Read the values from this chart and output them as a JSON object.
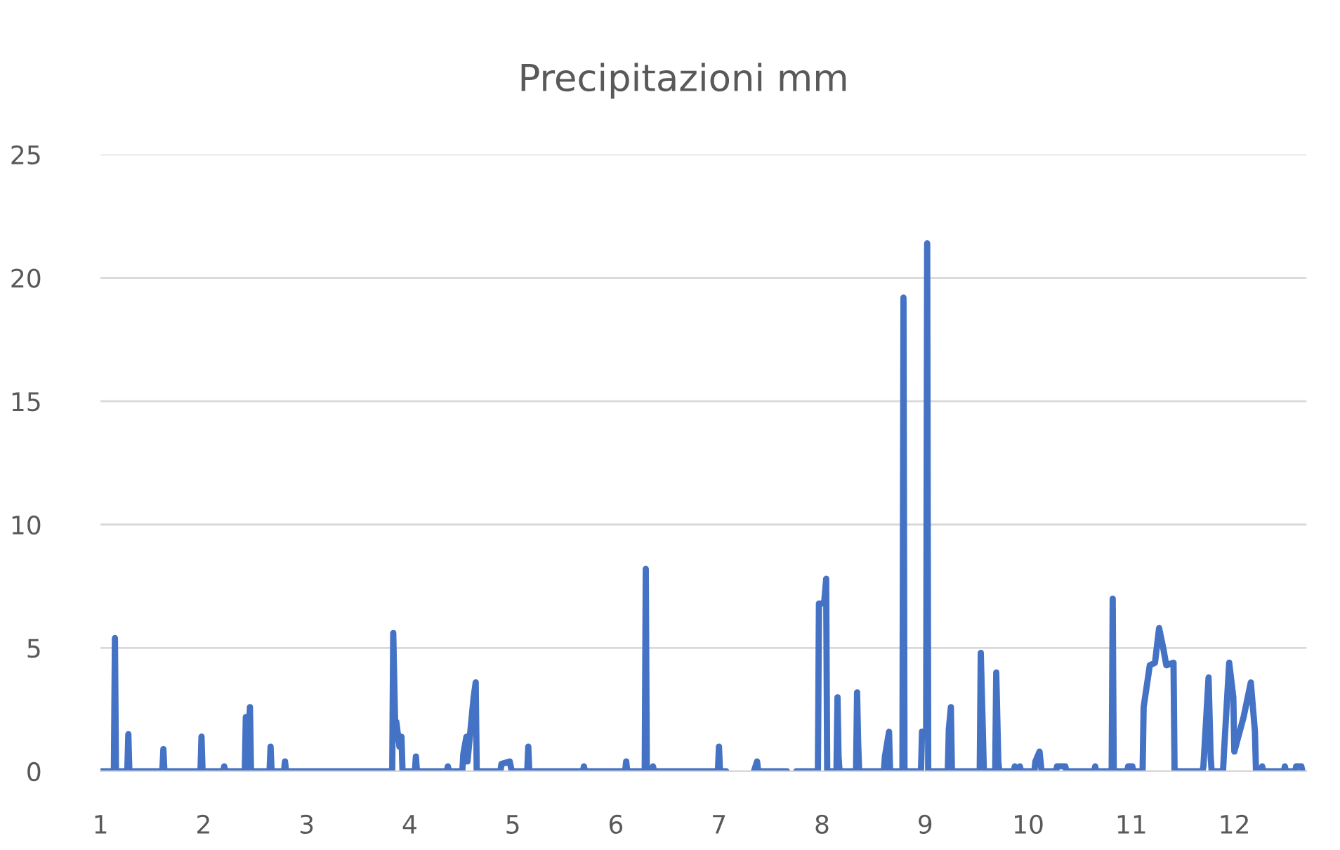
{
  "chart_data": {
    "type": "line",
    "title": "Precipitazioni mm",
    "x": [
      1,
      1.13,
      1.14,
      1.15,
      1.26,
      1.27,
      1.28,
      1.6,
      1.61,
      1.62,
      1.97,
      1.98,
      1.99,
      2.19,
      2.2,
      2.21,
      2.4,
      2.41,
      2.43,
      2.45,
      2.46,
      2.64,
      2.65,
      2.66,
      2.78,
      2.79,
      2.8,
      3.83,
      3.84,
      3.86,
      3.87,
      3.9,
      3.92,
      3.93,
      4.05,
      4.06,
      4.07,
      4.36,
      4.37,
      4.38,
      4.51,
      4.52,
      4.55,
      4.56,
      4.62,
      4.64,
      4.65,
      4.88,
      4.89,
      4.97,
      4.99,
      5.14,
      5.15,
      5.16,
      5.68,
      5.69,
      5.7,
      6.09,
      6.1,
      6.11,
      6.28,
      6.29,
      6.3,
      6.35,
      6.36,
      6.37,
      6.99,
      7.0,
      7.01,
      7.07,
      7.08,
      7.33,
      7.34,
      7.37,
      7.38,
      7.66,
      7.67,
      7.74,
      7.75,
      7.96,
      7.97,
      8.02,
      8.04,
      8.05,
      8.14,
      8.15,
      8.16,
      8.17,
      8.33,
      8.34,
      8.35,
      8.36,
      8.6,
      8.61,
      8.65,
      8.66,
      8.78,
      8.79,
      8.8,
      8.96,
      8.97,
      9.01,
      9.02,
      9.03,
      9.22,
      9.23,
      9.25,
      9.26,
      9.53,
      9.54,
      9.56,
      9.57,
      9.68,
      9.69,
      9.71,
      9.72,
      9.86,
      9.87,
      9.88,
      9.91,
      9.92,
      9.93,
      10.06,
      10.07,
      10.11,
      10.13,
      10.27,
      10.28,
      10.36,
      10.37,
      10.64,
      10.65,
      10.66,
      10.81,
      10.82,
      10.83,
      10.96,
      10.97,
      11.01,
      11.02,
      11.11,
      11.12,
      11.18,
      11.23,
      11.27,
      11.31,
      11.34,
      11.41,
      11.42,
      11.69,
      11.7,
      11.75,
      11.77,
      11.78,
      11.89,
      11.9,
      11.95,
      11.99,
      12.0,
      12.09,
      12.16,
      12.2,
      12.21,
      12.26,
      12.27,
      12.28,
      12.48,
      12.49,
      12.5,
      12.59,
      12.6,
      12.65,
      12.66
    ],
    "series": [
      {
        "color": "#4472c4",
        "values": [
          0,
          0,
          5.4,
          0,
          0,
          1.5,
          0,
          0,
          0.9,
          0,
          0,
          1.4,
          0,
          0,
          0.2,
          0,
          0,
          2.2,
          1.0,
          2.6,
          0,
          0,
          1.0,
          0,
          0,
          0.4,
          0,
          0,
          5.6,
          1.6,
          2.0,
          1.0,
          1.4,
          0,
          0,
          0.6,
          0,
          0,
          0.2,
          0,
          0,
          0.7,
          1.4,
          0.4,
          3.0,
          3.6,
          0,
          0,
          0.3,
          0.4,
          0,
          0,
          1.0,
          0,
          0,
          0.2,
          0,
          0,
          0.4,
          0,
          0,
          8.2,
          0,
          0,
          0.2,
          0,
          0,
          1.0,
          0,
          0,
          null,
          null,
          0,
          0.4,
          0,
          0,
          null,
          null,
          0,
          0,
          6.8,
          6.8,
          7.8,
          0,
          0,
          3.0,
          0.6,
          0,
          0,
          3.2,
          1.2,
          0,
          0,
          0.6,
          1.6,
          0,
          0,
          19.2,
          0,
          0,
          1.6,
          1.6,
          21.4,
          0,
          0,
          1.7,
          2.6,
          0,
          0,
          4.8,
          1.6,
          0,
          0,
          4.0,
          0.4,
          0,
          0,
          0.2,
          0,
          0,
          0.2,
          0,
          0,
          0.4,
          0.8,
          0,
          0,
          0.2,
          0.2,
          0,
          0,
          0.2,
          0,
          0,
          7.0,
          0,
          0,
          0.2,
          0.2,
          0,
          0,
          2.6,
          4.3,
          4.4,
          5.8,
          5.0,
          4.3,
          4.4,
          0,
          0,
          0.2,
          3.8,
          0.6,
          0,
          0,
          0.8,
          4.4,
          3.0,
          0.8,
          2.2,
          3.6,
          1.6,
          0,
          0,
          0.2,
          0,
          0,
          0.2,
          0,
          0,
          0.2,
          0.2,
          0
        ]
      }
    ],
    "xlim": [
      1,
      12.7
    ],
    "xticks": [
      1,
      2,
      3,
      4,
      5,
      6,
      7,
      8,
      9,
      10,
      11,
      12
    ],
    "ylim": [
      0,
      25
    ],
    "yticks": [
      0,
      5,
      10,
      15,
      20,
      25
    ],
    "grid": "y"
  }
}
